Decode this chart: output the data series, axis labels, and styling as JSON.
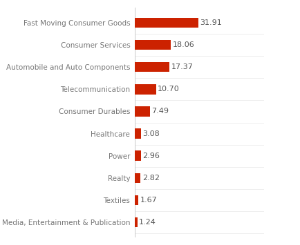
{
  "categories": [
    "Media, Entertainment & Publication",
    "Textiles",
    "Realty",
    "Power",
    "Healthcare",
    "Consumer Durables",
    "Telecommunication",
    "Automobile and Auto Components",
    "Consumer Services",
    "Fast Moving Consumer Goods"
  ],
  "values": [
    1.24,
    1.67,
    2.82,
    2.96,
    3.08,
    7.49,
    10.7,
    17.37,
    18.06,
    31.91
  ],
  "bar_color": "#cc2200",
  "label_color": "#777777",
  "value_color": "#555555",
  "background_color": "#ffffff",
  "bar_height": 0.45,
  "xlim": [
    0,
    65
  ],
  "figsize": [
    4.34,
    3.55
  ],
  "dpi": 100,
  "label_fontsize": 7.5,
  "value_fontsize": 8.0,
  "vline_color": "#cccccc",
  "grid_color": "#e8e8e8"
}
